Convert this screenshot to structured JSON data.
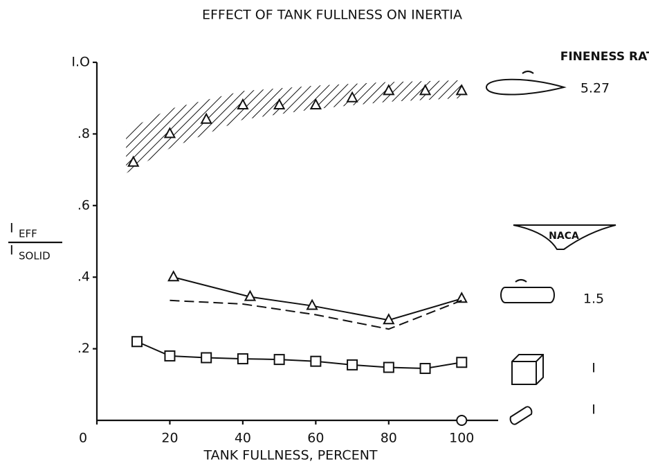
{
  "chart_data": {
    "type": "line",
    "title": "EFFECT OF TANK FULLNESS ON INERTIA",
    "xlabel": "TANK FULLNESS, PERCENT",
    "ylabel": {
      "main": "I",
      "top_sub": "EFF",
      "bottom_sub": "SOLID"
    },
    "legend_title": "FINENESS RATIO",
    "annotation": "NACA",
    "xlim": [
      0,
      110
    ],
    "xticks": [
      0,
      20,
      40,
      60,
      80,
      100
    ],
    "ylim": [
      0,
      1.0
    ],
    "yticks": [
      {
        "value": 0.2,
        "label": ".2"
      },
      {
        "value": 0.4,
        "label": ".4"
      },
      {
        "value": 0.6,
        "label": ".6"
      },
      {
        "value": 0.8,
        "label": ".8"
      },
      {
        "value": 1.0,
        "label": "I.O"
      }
    ],
    "color": "#111111",
    "band": {
      "x": [
        8,
        20,
        40,
        60,
        80,
        100
      ],
      "lower": [
        0.69,
        0.76,
        0.84,
        0.87,
        0.89,
        0.9
      ],
      "upper": [
        0.81,
        0.87,
        0.92,
        0.935,
        0.945,
        0.95
      ]
    },
    "series": [
      {
        "ratio": "5.27",
        "marker": "triangle",
        "line": "none",
        "x": [
          10,
          20,
          30,
          40,
          50,
          60,
          70,
          80,
          90,
          100
        ],
        "values": [
          0.72,
          0.8,
          0.84,
          0.88,
          0.88,
          0.88,
          0.9,
          0.92,
          0.92,
          0.92
        ]
      },
      {
        "ratio": "1.5",
        "marker": "triangle",
        "line": "solid",
        "x": [
          21,
          42,
          59,
          80,
          100
        ],
        "values": [
          0.4,
          0.345,
          0.32,
          0.28,
          0.34
        ]
      },
      {
        "marker": "none",
        "line": "dashed",
        "x": [
          20,
          40,
          60,
          80,
          100
        ],
        "values": [
          0.335,
          0.325,
          0.295,
          0.255,
          0.335
        ]
      },
      {
        "ratio": "I",
        "marker": "square",
        "line": "solid",
        "x": [
          11,
          20,
          30,
          40,
          50,
          60,
          70,
          80,
          90,
          100
        ],
        "values": [
          0.22,
          0.18,
          0.175,
          0.172,
          0.17,
          0.165,
          0.155,
          0.148,
          0.145,
          0.162
        ]
      },
      {
        "ratio": "I",
        "marker": "circle",
        "line": "none",
        "x": [
          100
        ],
        "values": [
          0
        ]
      }
    ]
  }
}
